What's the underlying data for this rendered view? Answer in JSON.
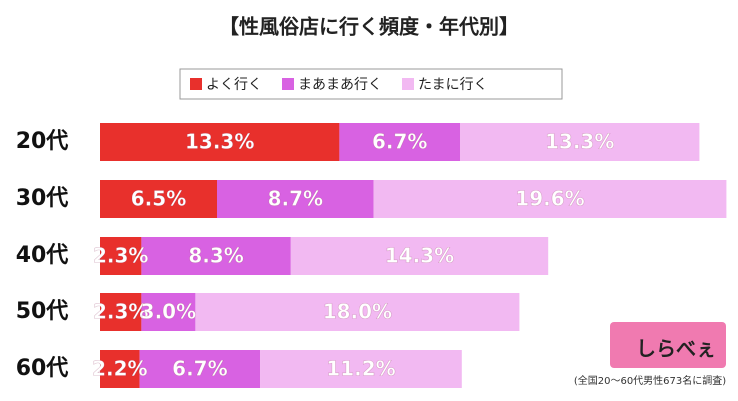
{
  "chart_data": {
    "type": "bar",
    "orientation": "horizontal",
    "stacked": true,
    "title": "【性風俗店に行く頻度・年代別】",
    "categories": [
      "20代",
      "30代",
      "40代",
      "50代",
      "60代"
    ],
    "series": [
      {
        "name": "よく行く",
        "color": "#e8302c",
        "values": [
          13.3,
          6.5,
          2.3,
          2.3,
          2.2
        ],
        "value_labels": [
          "13.3%",
          "6.5%",
          "2.3%",
          "2.3%",
          "2.2%"
        ]
      },
      {
        "name": "まあまあ行く",
        "color": "#d862e2",
        "values": [
          6.7,
          8.7,
          8.3,
          3.0,
          6.7
        ],
        "value_labels": [
          "6.7%",
          "8.7%",
          "8.3%",
          "3.0%",
          "6.7%"
        ]
      },
      {
        "name": "たまに行く",
        "color": "#f2b9f2",
        "values": [
          13.3,
          19.6,
          14.3,
          18.0,
          11.2
        ],
        "value_labels": [
          "13.3%",
          "19.6%",
          "14.3%",
          "18.0%",
          "11.2%"
        ]
      }
    ],
    "legend": "top",
    "note": "(全国20～60代男性673名に調査)",
    "logo": "しらべぇ"
  }
}
